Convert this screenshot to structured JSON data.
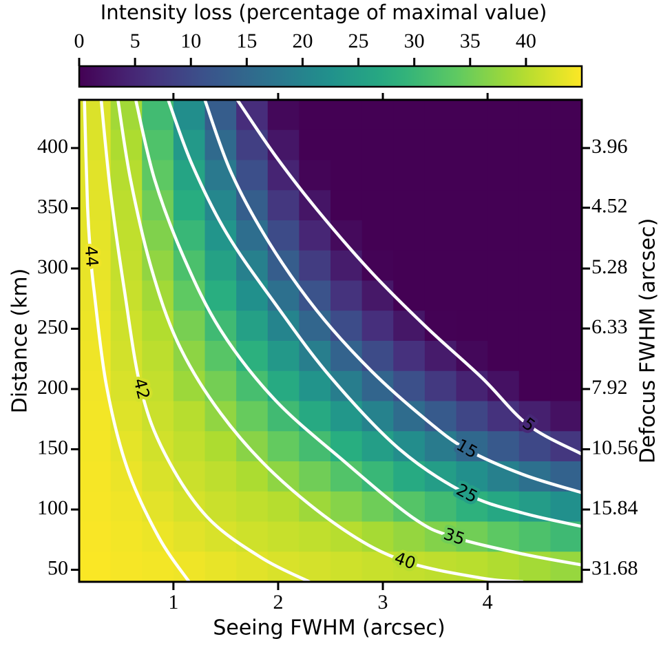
{
  "chart_data": {
    "type": "heatmap",
    "title": "Intensity loss (percentage of maximal value)",
    "xlabel": "Seeing FWHM (arcsec)",
    "ylabel": "Distance (km)",
    "y2label": "Defocus FWHM (arcsec)",
    "cmap": "viridis",
    "clim": [
      0,
      45
    ],
    "cticks": [
      0,
      5,
      10,
      15,
      20,
      25,
      30,
      35,
      40
    ],
    "xlim": [
      0.1,
      4.9
    ],
    "ylim": [
      40,
      440
    ],
    "xticks": [
      1,
      2,
      3,
      4
    ],
    "yticks": [
      50,
      100,
      150,
      200,
      250,
      300,
      350,
      400
    ],
    "y2lim": [
      39.6,
      3.6
    ],
    "y2scale": "reciprocal",
    "y2ticks": [
      31.68,
      15.84,
      10.56,
      7.92,
      6.33,
      5.28,
      4.52,
      3.96
    ],
    "x": [
      0.25,
      0.55,
      0.85,
      1.15,
      1.45,
      1.75,
      2.05,
      2.35,
      2.65,
      2.95,
      3.25,
      3.55,
      3.85,
      4.15,
      4.45,
      4.75
    ],
    "y": [
      427.5,
      402.5,
      377.5,
      352.5,
      327.5,
      302.5,
      277.5,
      252.5,
      227.5,
      202.5,
      177.5,
      152.5,
      127.5,
      102.5,
      77.5,
      52.5
    ],
    "z": [
      [
        42.6,
        38.6,
        30.8,
        22,
        13.2,
        5.7,
        0.9,
        0,
        0,
        0,
        0,
        0,
        0,
        0,
        0,
        0
      ],
      [
        42.7,
        39.4,
        32.2,
        24.1,
        15.4,
        8.3,
        2.7,
        0,
        0,
        0,
        0,
        0,
        0,
        0,
        0,
        0
      ],
      [
        43,
        40,
        33.6,
        26.1,
        18.1,
        10.8,
        4.5,
        0.5,
        0,
        0,
        0,
        0,
        0,
        0,
        0,
        0
      ],
      [
        43.1,
        40.4,
        35,
        28,
        20.6,
        13.4,
        7.2,
        2.6,
        0,
        0,
        0,
        0,
        0,
        0,
        0,
        0
      ],
      [
        43.3,
        40.7,
        36.2,
        29.9,
        23.2,
        16.2,
        10.2,
        4.7,
        1.1,
        0,
        0,
        0,
        0,
        0,
        0,
        0
      ],
      [
        43.5,
        41,
        37.4,
        31.8,
        25.7,
        19.4,
        13.2,
        7.9,
        3.5,
        0.3,
        0,
        0,
        0,
        0,
        0,
        0
      ],
      [
        43.7,
        41.3,
        38.6,
        33.7,
        28.2,
        22.4,
        16.5,
        11.4,
        6.5,
        2.9,
        0,
        0,
        0,
        0,
        0,
        0
      ],
      [
        43.9,
        41.7,
        39.7,
        35.6,
        30.6,
        25.5,
        20.2,
        14.8,
        10.4,
        5.9,
        2.8,
        0.1,
        0,
        0,
        0,
        0
      ],
      [
        44,
        42,
        40.4,
        37.1,
        33,
        28.5,
        23.9,
        19,
        14.2,
        10.2,
        6.2,
        3.3,
        0.9,
        0,
        0,
        0
      ],
      [
        44.2,
        42.4,
        40.9,
        38.2,
        35.3,
        31.4,
        27.3,
        23.1,
        18.8,
        14.6,
        11,
        7.4,
        4.3,
        2.1,
        0,
        0
      ],
      [
        44.3,
        42.8,
        41.4,
        40.1,
        37.4,
        34.3,
        30.7,
        27.2,
        23.6,
        19.7,
        15.9,
        12.6,
        9.5,
        6.4,
        3.9,
        2
      ],
      [
        44.4,
        43.3,
        41.9,
        40.8,
        39.4,
        36.8,
        34.1,
        31.1,
        28.1,
        25,
        21.7,
        18.5,
        15.2,
        12.5,
        9.8,
        7.1
      ],
      [
        44.5,
        43.7,
        42.5,
        41.5,
        40.6,
        39.3,
        37.2,
        35,
        32.5,
        29.9,
        27.4,
        24.8,
        22.1,
        19.4,
        16.6,
        14.1
      ],
      [
        44.6,
        44.1,
        43.2,
        42.2,
        41.4,
        40.7,
        40,
        38.3,
        36.6,
        34.9,
        32.8,
        30.7,
        28.7,
        26.7,
        24.6,
        22.4
      ],
      [
        44.7,
        44.3,
        43.8,
        43.1,
        42.4,
        41.7,
        41.2,
        40.7,
        40.1,
        38.9,
        37.7,
        36.4,
        35.1,
        33.5,
        32,
        30.5
      ],
      [
        44.8,
        44.5,
        44.3,
        44,
        43.5,
        43,
        42.5,
        42.1,
        41.7,
        41.3,
        40.9,
        40.6,
        40.2,
        39.6,
        38.7,
        37.8
      ]
    ],
    "contours": [
      {
        "level": 5,
        "color": "#ffffff",
        "x": [
          1.61,
          1.97,
          2.37,
          2.89,
          3.42,
          3.95,
          4.39,
          4.9
        ],
        "y": [
          440,
          394,
          349,
          297,
          251,
          209,
          170,
          146
        ]
      },
      {
        "level": 15,
        "color": "#ffffff",
        "x": [
          1.3,
          1.55,
          1.91,
          2.37,
          2.89,
          3.42,
          3.8,
          4.34,
          4.9
        ],
        "y": [
          440,
          380,
          322,
          265,
          215,
          174,
          150,
          129,
          114
        ]
      },
      {
        "level": 25,
        "color": "#ffffff",
        "x": [
          0.95,
          1.18,
          1.51,
          1.97,
          2.5,
          3.16,
          3.8,
          4.34,
          4.9
        ],
        "y": [
          440,
          386,
          329,
          271,
          210,
          150,
          113,
          97,
          86
        ]
      },
      {
        "level": 35,
        "color": "#ffffff",
        "x": [
          0.64,
          0.82,
          1.09,
          1.45,
          1.97,
          2.63,
          3.29,
          3.68,
          4.34,
          4.9
        ],
        "y": [
          440,
          374,
          311,
          249,
          191,
          140,
          93,
          77,
          63,
          54
        ]
      },
      {
        "level": 40,
        "color": "#ffffff",
        "x": [
          0.47,
          0.59,
          0.79,
          1.05,
          1.45,
          1.97,
          2.63,
          3.21,
          3.95,
          4.34
        ],
        "y": [
          440,
          374,
          300,
          237,
          180,
          129,
          83,
          57,
          43,
          40
        ]
      },
      {
        "level": 42,
        "color": "#ffffff",
        "x": [
          0.31,
          0.4,
          0.53,
          0.69,
          0.92,
          1.32,
          1.84,
          2.3
        ],
        "y": [
          440,
          363,
          283,
          200,
          146,
          94,
          60,
          40
        ]
      },
      {
        "level": 44,
        "color": "#ffffff",
        "x": [
          0.15,
          0.18,
          0.21,
          0.24,
          0.36,
          0.56,
          0.86,
          1.15
        ],
        "y": [
          440,
          351,
          310,
          283,
          203,
          134,
          77,
          40
        ]
      }
    ]
  }
}
